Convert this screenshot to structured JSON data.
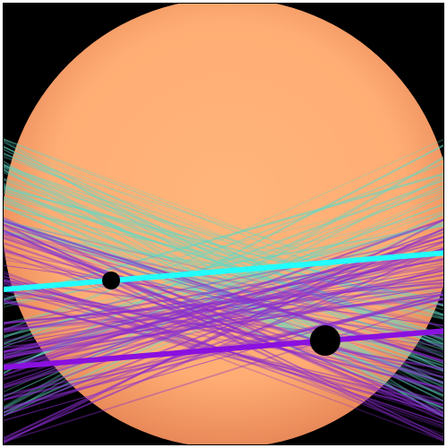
{
  "colors": {
    "background": "#000000",
    "star_center": "#ffb57a",
    "star_limb": "#e88858",
    "transit_path_a": "#22ffff",
    "transit_path_a_fan": "#5fd9c6",
    "transit_path_b": "#8a10e0",
    "transit_path_b_fan": "#8a2bd0",
    "planet": "#000000",
    "frame": "#ffffff"
  },
  "bodies": {
    "star": "star-disk",
    "planet_small": "planet-small",
    "planet_large": "planet-large"
  }
}
